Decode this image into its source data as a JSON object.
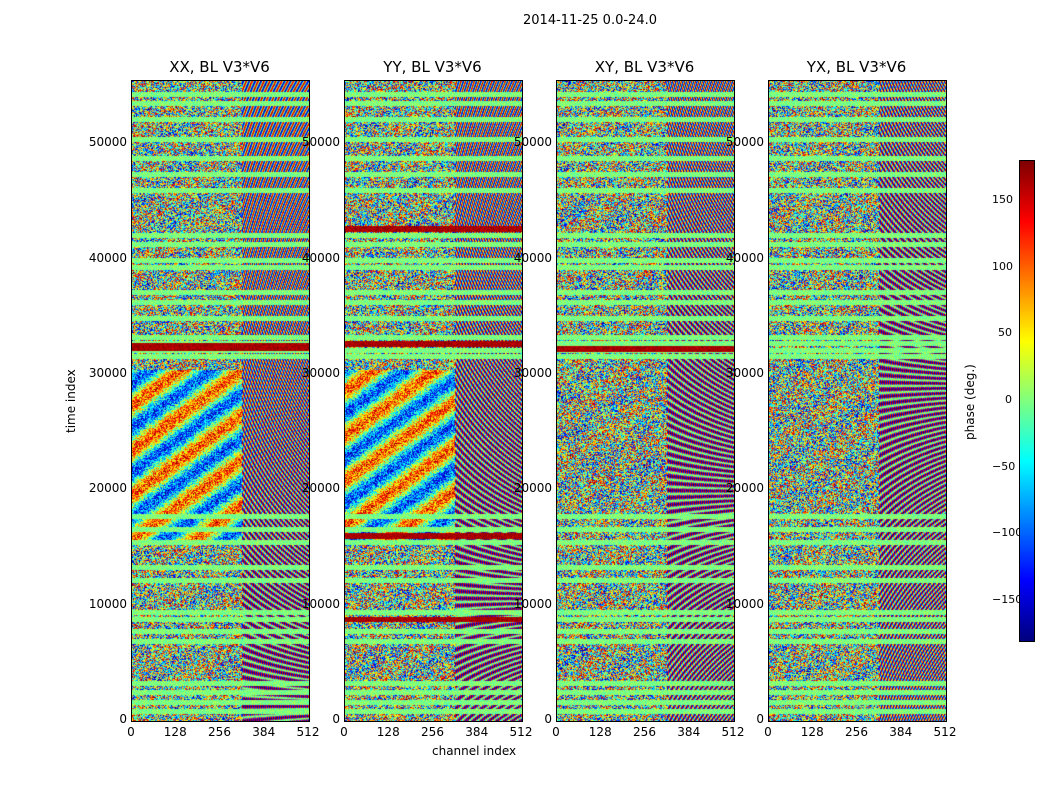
{
  "chart_data": {
    "type": "heatmap",
    "suptitle": "2014-11-25 0.0-24.0",
    "panels": [
      {
        "title": "XX, BL V3*V6"
      },
      {
        "title": "YY, BL V3*V6"
      },
      {
        "title": "XY, BL V3*V6"
      },
      {
        "title": "YX, BL V3*V6"
      }
    ],
    "xlabel": "channel index",
    "ylabel": "time index",
    "x_ticks": [
      "0",
      "128",
      "256",
      "384",
      "512"
    ],
    "y_ticks": [
      "0",
      "10000",
      "20000",
      "30000",
      "40000",
      "50000"
    ],
    "xlim": [
      0,
      512
    ],
    "ylim": [
      0,
      55500
    ],
    "colorbar": {
      "label": "phase (deg.)",
      "ticks": [
        "150",
        "100",
        "50",
        "0",
        "−50",
        "−100",
        "−150"
      ],
      "range": [
        -180,
        180
      ],
      "colormap": "jet"
    }
  }
}
